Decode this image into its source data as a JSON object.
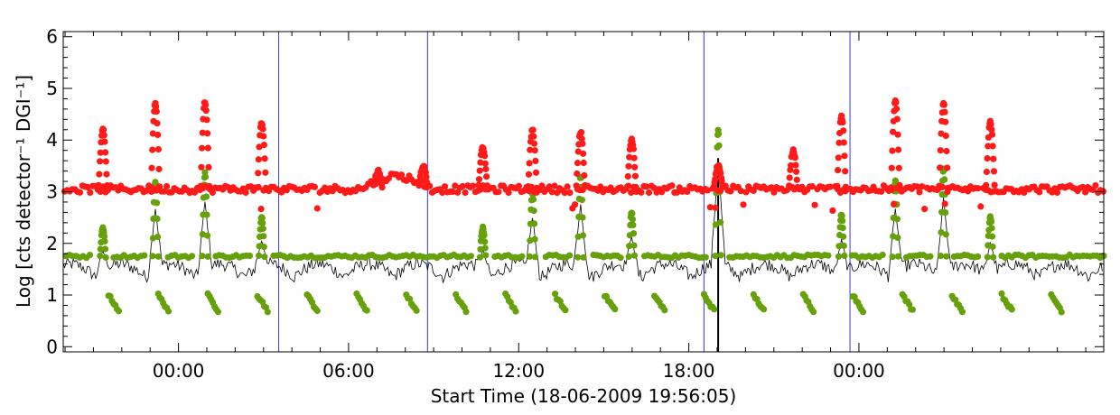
{
  "chart_data": {
    "type": "scatter",
    "title": "",
    "xlabel": "Start Time (18-06-2009 19:56:05)",
    "ylabel": "Log [cts detector⁻¹ DGI⁻¹]",
    "ylim": [
      -0.1,
      6.1
    ],
    "xlim_hours_from_start": [
      0,
      36.7
    ],
    "y_ticks": [
      "0",
      "1",
      "2",
      "3",
      "4",
      "5",
      "6"
    ],
    "x_ticks": [
      {
        "label": "00:00",
        "hour": 4.065
      },
      {
        "label": "06:00",
        "hour": 10.065
      },
      {
        "label": "12:00",
        "hour": 16.065
      },
      {
        "label": "18:00",
        "hour": 22.065
      },
      {
        "label": "00:00",
        "hour": 28.065
      }
    ],
    "vertical_markers_hours": [
      7.6,
      12.85,
      22.6,
      27.75
    ],
    "series": [
      {
        "color": "#ff1a1a",
        "baseline": 3.1,
        "peaks": [
          [
            1.4,
            4.2
          ],
          [
            3.25,
            4.7
          ],
          [
            5.0,
            4.75
          ],
          [
            7.0,
            4.35
          ],
          [
            11.1,
            3.4
          ],
          [
            12.7,
            3.5
          ],
          [
            14.8,
            3.85
          ],
          [
            16.55,
            4.2
          ],
          [
            18.25,
            4.15
          ],
          [
            20.05,
            4.0
          ],
          [
            23.1,
            3.5
          ],
          [
            25.75,
            3.8
          ],
          [
            27.45,
            4.45
          ],
          [
            29.35,
            4.75
          ],
          [
            31.05,
            4.7
          ],
          [
            32.7,
            4.35
          ]
        ]
      },
      {
        "color": "#66a00a",
        "baseline": 1.75,
        "peaks": [
          [
            1.4,
            2.3
          ],
          [
            3.25,
            3.2
          ],
          [
            5.0,
            3.35
          ],
          [
            7.0,
            2.5
          ],
          [
            14.8,
            2.3
          ],
          [
            16.55,
            3.0
          ],
          [
            18.25,
            3.3
          ],
          [
            20.05,
            2.6
          ],
          [
            23.1,
            4.2
          ],
          [
            27.45,
            2.55
          ],
          [
            29.35,
            3.2
          ],
          [
            31.05,
            3.45
          ],
          [
            32.7,
            2.5
          ]
        ]
      },
      {
        "color": "#000000",
        "baseline": 1.5
      }
    ]
  }
}
